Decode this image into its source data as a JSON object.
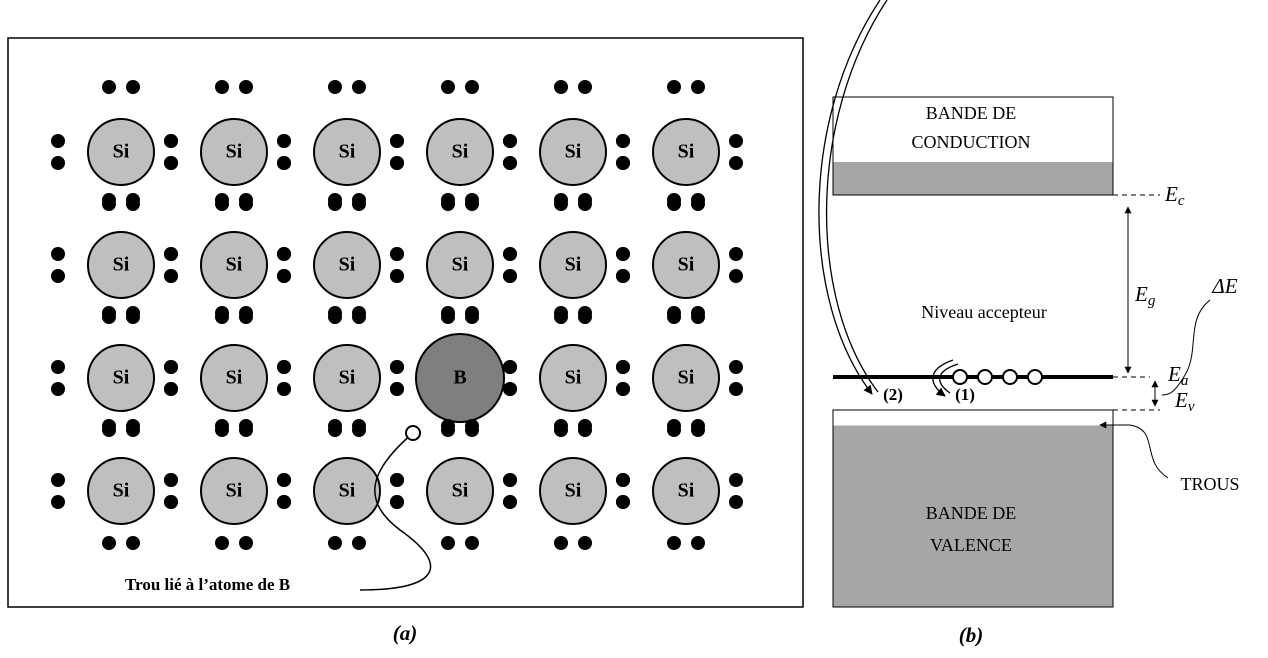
{
  "panel_a": {
    "atoms": [
      [
        "Si",
        "Si",
        "Si",
        "Si",
        "Si",
        "Si"
      ],
      [
        "Si",
        "Si",
        "Si",
        "Si",
        "Si",
        "Si"
      ],
      [
        "Si",
        "Si",
        "Si",
        "B",
        "Si",
        "Si"
      ],
      [
        "Si",
        "Si",
        "Si",
        "Si",
        "Si",
        "Si"
      ]
    ],
    "hole_label": "Trou lié à l’atome de B",
    "caption": "(a)"
  },
  "panel_b": {
    "conduction_band": [
      "BANDE DE",
      "CONDUCTION"
    ],
    "valence_band": [
      "BANDE DE",
      "VALENCE"
    ],
    "acceptor_level": "Niveau accepteur",
    "Ec": {
      "symbol": "E",
      "subscript": "c"
    },
    "Eg": {
      "symbol": "E",
      "subscript": "g"
    },
    "Ea": {
      "symbol": "E",
      "subscript": "a"
    },
    "Ev": {
      "symbol": "E",
      "subscript": "v"
    },
    "delta_E": "ΔE",
    "transitions": [
      "(2)",
      "(1)"
    ],
    "holes": "TROUS",
    "caption": "(b)"
  }
}
